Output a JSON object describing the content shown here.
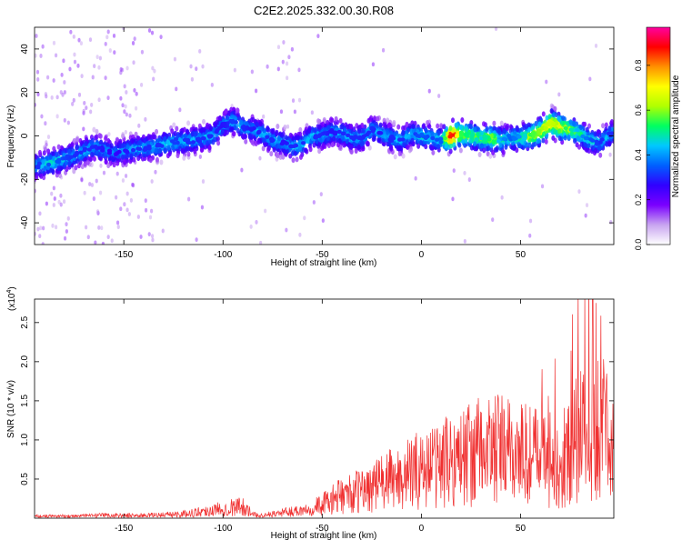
{
  "title": "C2E2.2025.332.00.30.R08",
  "chart_data": [
    {
      "type": "heatmap",
      "xlabel": "Height of straight line (km)",
      "ylabel": "Frequency (Hz)",
      "xlim": [
        -195,
        97
      ],
      "ylim": [
        -50,
        50
      ],
      "x_ticks": [
        -150,
        -100,
        -50,
        0,
        50
      ],
      "y_ticks": [
        40,
        20,
        0,
        -20,
        -40
      ],
      "colorbar": {
        "label": "Normalized spectral amplitude",
        "range": [
          0,
          0.97
        ],
        "ticks": [
          0.0,
          0.2,
          0.4,
          0.6,
          0.8
        ],
        "colormap": [
          "#ffffff",
          "#c8a4f0",
          "#7a00ff",
          "#3000ff",
          "#0060ff",
          "#00c8ff",
          "#00ff60",
          "#b0ff00",
          "#ffff00",
          "#ff9000",
          "#ff0000",
          "#ff00a0"
        ]
      },
      "ridge": {
        "x": [
          -195,
          -185,
          -175,
          -165,
          -155,
          -145,
          -135,
          -125,
          -115,
          -105,
          -100,
          -95,
          -90,
          -85,
          -80,
          -75,
          -70,
          -65,
          -60,
          -55,
          -50,
          -45,
          -40,
          -35,
          -30,
          -25,
          -20,
          -15,
          -10,
          -5,
          0,
          5,
          10,
          15,
          20,
          25,
          30,
          35,
          40,
          45,
          50,
          55,
          60,
          65,
          70,
          75,
          80,
          85,
          90,
          97
        ],
        "freq": [
          -14,
          -12,
          -9,
          -5,
          -8,
          -6,
          -5,
          -3,
          -2,
          0,
          5,
          7,
          4,
          3,
          1,
          -2,
          -3,
          -5,
          -4,
          0,
          0,
          2,
          1,
          -1,
          -1,
          3,
          1,
          -1,
          -2,
          1,
          0,
          -1,
          -2,
          0,
          1,
          0,
          -1,
          -1,
          -2,
          -1,
          -1,
          0,
          2,
          6,
          4,
          3,
          1,
          -2,
          -3,
          2
        ],
        "peak_amplitude": [
          0.3,
          0.35,
          0.3,
          0.3,
          0.25,
          0.3,
          0.3,
          0.32,
          0.3,
          0.3,
          0.28,
          0.32,
          0.3,
          0.28,
          0.3,
          0.3,
          0.28,
          0.3,
          0.3,
          0.3,
          0.3,
          0.28,
          0.3,
          0.3,
          0.3,
          0.3,
          0.28,
          0.3,
          0.3,
          0.3,
          0.35,
          0.32,
          0.35,
          0.92,
          0.55,
          0.5,
          0.45,
          0.55,
          0.4,
          0.35,
          0.4,
          0.55,
          0.6,
          0.65,
          0.6,
          0.5,
          0.4,
          0.35,
          0.3,
          0.3
        ]
      }
    },
    {
      "type": "line",
      "xlabel": "Height of straight line (km)",
      "ylabel": "SNR (10 * v/v)",
      "y_multiplier": "(x10",
      "y_multiplier_exp": "4",
      "y_multiplier_close": ")",
      "xlim": [
        -195,
        97
      ],
      "ylim": [
        0,
        2.8
      ],
      "x_ticks": [
        -150,
        -100,
        -50,
        0,
        50
      ],
      "y_ticks": [
        0.5,
        1.0,
        1.5,
        2.0,
        2.5
      ],
      "series": [
        {
          "name": "SNR",
          "color": "#f03030",
          "x": [
            -195,
            -180,
            -160,
            -140,
            -130,
            -120,
            -110,
            -100,
            -90,
            -85,
            -80,
            -70,
            -60,
            -50,
            -40,
            -30,
            -20,
            -10,
            0,
            10,
            20,
            30,
            40,
            50,
            60,
            70,
            80,
            90,
            97
          ],
          "y": [
            0.03,
            0.03,
            0.04,
            0.04,
            0.05,
            0.06,
            0.1,
            0.14,
            0.18,
            0.05,
            0.04,
            0.08,
            0.12,
            0.2,
            0.33,
            0.4,
            0.52,
            0.6,
            0.72,
            0.8,
            0.9,
            0.98,
            1.0,
            0.95,
            0.9,
            0.8,
            1.2,
            1.3,
            1.2
          ]
        }
      ]
    }
  ]
}
